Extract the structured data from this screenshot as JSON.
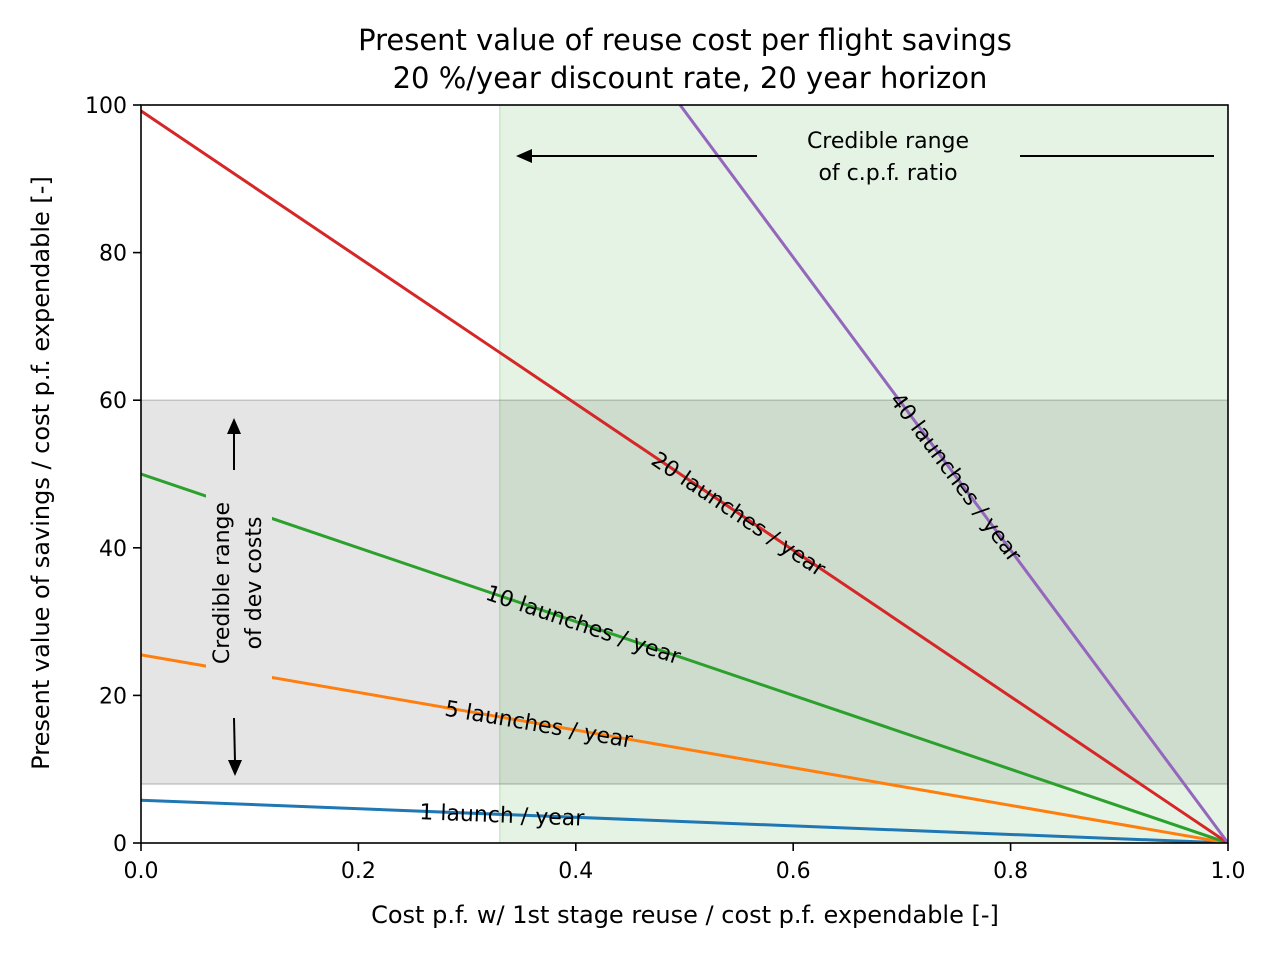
{
  "chart_data": {
    "type": "line",
    "title": "Present value of reuse cost per flight savings",
    "subtitle": "20 %/year discount rate, 20 year horizon",
    "xlabel": "Cost p.f. w/ 1st stage reuse / cost p.f. expendable [-]",
    "ylabel": "Present value of savings / cost p.f. expendable [-]",
    "xlim": [
      0.0,
      1.0
    ],
    "ylim": [
      0,
      100
    ],
    "xticks": [
      0.0,
      0.2,
      0.4,
      0.6,
      0.8,
      1.0
    ],
    "xtick_labels": [
      "0.0",
      "0.2",
      "0.4",
      "0.6",
      "0.8",
      "1.0"
    ],
    "yticks": [
      0,
      20,
      40,
      60,
      80,
      100
    ],
    "ytick_labels": [
      "0",
      "20",
      "40",
      "60",
      "80",
      "100"
    ],
    "grid": false,
    "series": [
      {
        "name": "1 launch / year",
        "color": "#1f77b4",
        "x": [
          0.0,
          1.0
        ],
        "y": [
          5.8,
          0
        ]
      },
      {
        "name": "5 launches / year",
        "color": "#ff7f0e",
        "x": [
          0.0,
          1.0
        ],
        "y": [
          25.5,
          0
        ]
      },
      {
        "name": "10 launches / year",
        "color": "#2ca02c",
        "x": [
          0.0,
          1.0
        ],
        "y": [
          50.0,
          0
        ]
      },
      {
        "name": "20 launches / year",
        "color": "#d62728",
        "x": [
          0.0,
          1.0
        ],
        "y": [
          99.2,
          0
        ]
      },
      {
        "name": "40 launches / year",
        "color": "#9467bd",
        "x": [
          0.0,
          1.0
        ],
        "y": [
          198.4,
          0
        ]
      }
    ],
    "shaded_regions": [
      {
        "axis": "x",
        "from": 0.33,
        "to": 1.0,
        "color": "#e5f0e3",
        "label_lines": [
          "Credible range",
          "of c.p.f. ratio"
        ]
      },
      {
        "axis": "y",
        "from": 8,
        "to": 60,
        "color": "#e5e5e5",
        "label_lines": [
          "Credible range",
          "of dev costs"
        ]
      }
    ]
  }
}
